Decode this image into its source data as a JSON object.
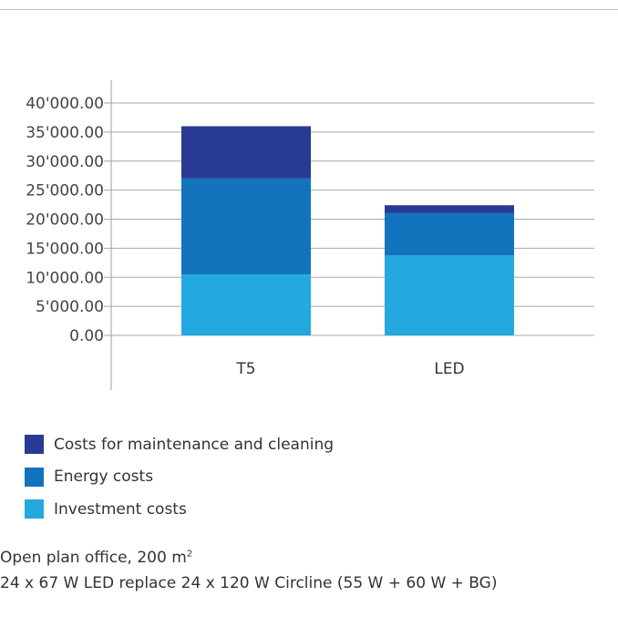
{
  "chart_data": {
    "type": "bar",
    "stacked": true,
    "categories": [
      "T5",
      "LED"
    ],
    "series": [
      {
        "name": "Investment costs",
        "color": "#23a8e0",
        "values": [
          10500,
          13800
        ]
      },
      {
        "name": "Energy costs",
        "color": "#1174bd",
        "values": [
          16500,
          7300
        ]
      },
      {
        "name": "Costs for maintenance and cleaning",
        "color": "#283a93",
        "values": [
          9000,
          1300
        ]
      }
    ],
    "ylim": [
      0,
      40000
    ],
    "y_ticks": [
      0,
      5000,
      10000,
      15000,
      20000,
      25000,
      30000,
      35000,
      40000
    ],
    "y_tick_labels": [
      "0.00",
      "5'000.00",
      "10'000.00",
      "15'000.00",
      "20'000.00",
      "25'000.00",
      "30'000.00",
      "35'000.00",
      "40'000.00"
    ],
    "grid": true,
    "legend_position": "bottom-left",
    "title": "",
    "xlabel": "",
    "ylabel": ""
  },
  "legend": {
    "items": [
      {
        "label": "Costs for maintenance and cleaning",
        "color": "#283a93"
      },
      {
        "label": "Energy costs",
        "color": "#1174bd"
      },
      {
        "label": "Investment costs",
        "color": "#23a8e0"
      }
    ]
  },
  "caption": {
    "line1": "Open plan office, 200 m",
    "line1_sup": "2",
    "line2": "24 x 67 W LED replace 24 x 120 W Circline (55 W + 60 W + BG)"
  }
}
